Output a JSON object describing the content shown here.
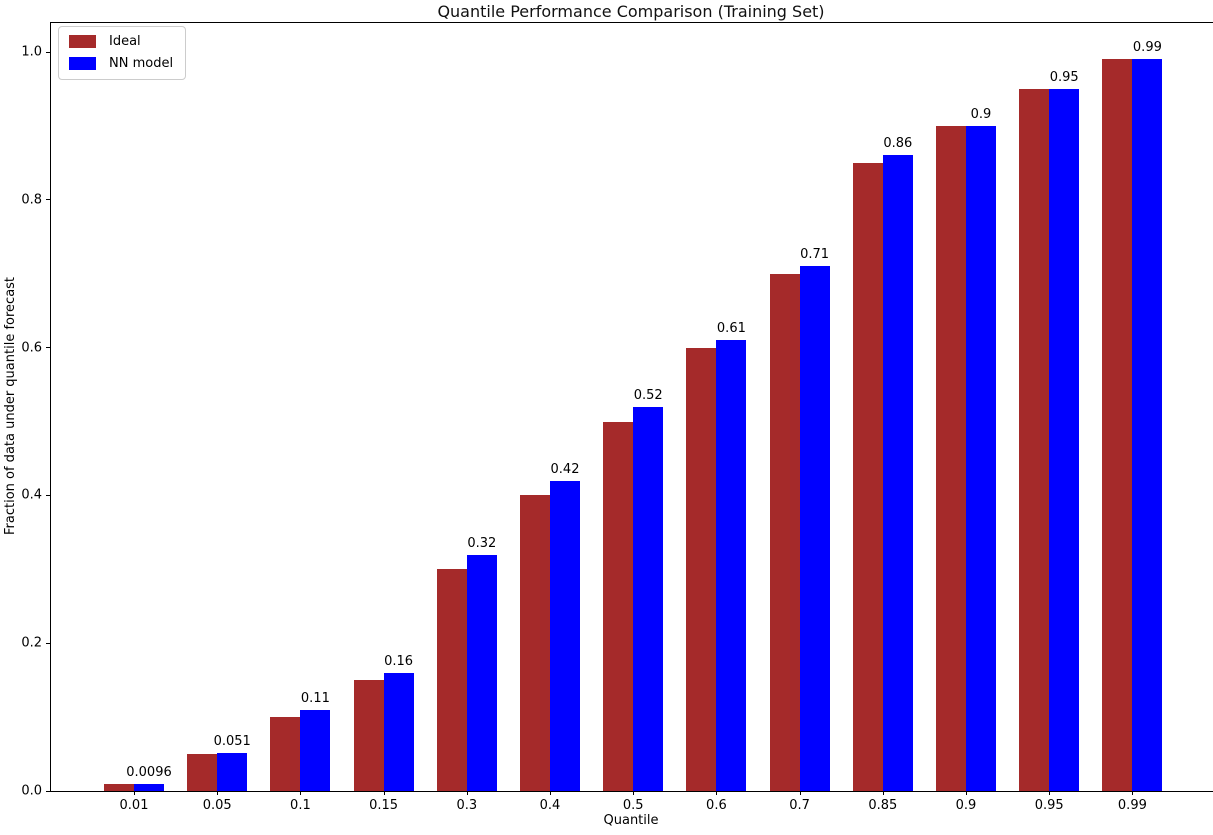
{
  "chart_data": {
    "type": "bar",
    "title": "Quantile Performance Comparison (Training Set)",
    "xlabel": "Quantile",
    "ylabel": "Fraction of data under quantile forecast",
    "categories": [
      "0.01",
      "0.05",
      "0.1",
      "0.15",
      "0.3",
      "0.4",
      "0.5",
      "0.6",
      "0.7",
      "0.85",
      "0.9",
      "0.95",
      "0.99"
    ],
    "series": [
      {
        "name": "Ideal",
        "color": "#A52A2A",
        "values": [
          0.01,
          0.05,
          0.1,
          0.15,
          0.3,
          0.4,
          0.5,
          0.6,
          0.7,
          0.85,
          0.9,
          0.95,
          0.99
        ]
      },
      {
        "name": "NN model",
        "color": "#0000FF",
        "values": [
          0.0096,
          0.051,
          0.11,
          0.16,
          0.32,
          0.42,
          0.52,
          0.61,
          0.71,
          0.86,
          0.9,
          0.95,
          0.99
        ],
        "bar_labels": [
          "0.0096",
          "0.051",
          "0.11",
          "0.16",
          "0.32",
          "0.42",
          "0.52",
          "0.61",
          "0.71",
          "0.86",
          "0.9",
          "0.95",
          "0.99"
        ]
      }
    ],
    "yticks": [
      0.0,
      0.2,
      0.4,
      0.6,
      0.8,
      1.0
    ],
    "ytick_labels": [
      "0.0",
      "0.2",
      "0.4",
      "0.6",
      "0.8",
      "1.0"
    ],
    "ylim": [
      0,
      1.04
    ],
    "grid": false,
    "legend_position": "upper left",
    "text_color": "#000000",
    "background_color": "#ffffff"
  }
}
